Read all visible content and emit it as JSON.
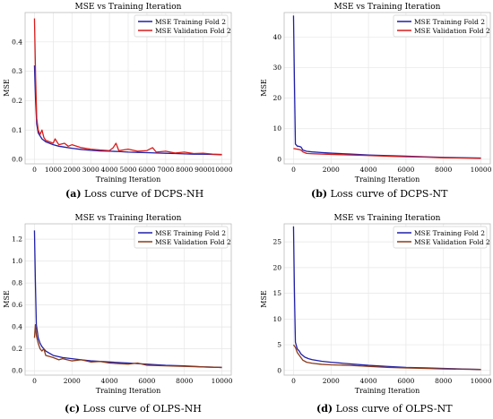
{
  "chart_data": [
    {
      "type": "line",
      "title": "MSE vs Training Iteration",
      "xlabel": "Training Iteration",
      "ylabel": "MSE",
      "xlim": [
        -500,
        10500
      ],
      "ylim": [
        -0.015,
        0.5
      ],
      "xticks": [
        0,
        1000,
        2000,
        3000,
        4000,
        5000,
        6000,
        7000,
        8000,
        9000,
        10000
      ],
      "yticks": [
        0.0,
        0.1,
        0.2,
        0.3,
        0.4
      ],
      "ytick_labels": [
        "0.0",
        "0.1",
        "0.2",
        "0.3",
        "0.4"
      ],
      "grid": true,
      "legend_position": "top-right",
      "caption_label": "(a)",
      "caption_text": "Loss curve of DCPS-NH",
      "series": [
        {
          "name": "MSE Training Fold 2",
          "color": "#1f1fa8",
          "x": [
            0,
            60,
            120,
            200,
            300,
            400,
            600,
            800,
            1000,
            1300,
            1600,
            2000,
            2500,
            3000,
            3500,
            4000,
            4500,
            5000,
            5500,
            6000,
            6500,
            7000,
            7500,
            8000,
            8500,
            9000,
            9500,
            10000
          ],
          "y": [
            0.32,
            0.2,
            0.12,
            0.09,
            0.08,
            0.07,
            0.06,
            0.055,
            0.05,
            0.045,
            0.042,
            0.038,
            0.034,
            0.031,
            0.029,
            0.028,
            0.027,
            0.025,
            0.024,
            0.023,
            0.022,
            0.021,
            0.02,
            0.019,
            0.018,
            0.018,
            0.017,
            0.016
          ]
        },
        {
          "name": "MSE Validation Fold 2",
          "color": "#d81b1b",
          "x": [
            0,
            60,
            120,
            200,
            300,
            400,
            500,
            600,
            800,
            1000,
            1100,
            1300,
            1600,
            1800,
            2000,
            2500,
            3000,
            3500,
            4000,
            4200,
            4350,
            4500,
            5000,
            5500,
            6000,
            6300,
            6500,
            7000,
            7500,
            8000,
            8500,
            9000,
            9500,
            10000
          ],
          "y": [
            0.48,
            0.28,
            0.14,
            0.1,
            0.085,
            0.1,
            0.075,
            0.065,
            0.06,
            0.055,
            0.07,
            0.05,
            0.055,
            0.045,
            0.05,
            0.04,
            0.035,
            0.032,
            0.03,
            0.04,
            0.055,
            0.03,
            0.035,
            0.028,
            0.03,
            0.04,
            0.025,
            0.028,
            0.022,
            0.025,
            0.02,
            0.021,
            0.018,
            0.017
          ]
        }
      ]
    },
    {
      "type": "line",
      "title": "MSE vs Training Iteration",
      "xlabel": "Training Iteration",
      "ylabel": "MSE",
      "xlim": [
        -500,
        10500
      ],
      "ylim": [
        -1.5,
        48
      ],
      "xticks": [
        0,
        2000,
        4000,
        6000,
        8000,
        10000
      ],
      "yticks": [
        0,
        10,
        20,
        30,
        40
      ],
      "ytick_labels": [
        "0",
        "10",
        "20",
        "30",
        "40"
      ],
      "grid": true,
      "legend_position": "top-right",
      "caption_label": "(b)",
      "caption_text": "Loss curve of DCPS-NT",
      "series": [
        {
          "name": "MSE Training Fold 2",
          "color": "#1f1fa8",
          "x": [
            0,
            50,
            100,
            200,
            300,
            400,
            500,
            700,
            1000,
            1500,
            2000,
            3000,
            4000,
            5000,
            6000,
            7000,
            8000,
            9000,
            10000
          ],
          "y": [
            47,
            25,
            5,
            4.3,
            4.2,
            4.0,
            3.0,
            2.6,
            2.4,
            2.2,
            2.0,
            1.7,
            1.4,
            1.2,
            1.0,
            0.8,
            0.6,
            0.5,
            0.4
          ]
        },
        {
          "name": "MSE Validation Fold 2",
          "color": "#d81b1b",
          "x": [
            0,
            100,
            200,
            300,
            400,
            500,
            700,
            1000,
            1500,
            2000,
            3000,
            4000,
            5000,
            6000,
            7000,
            8000,
            9000,
            10000
          ],
          "y": [
            3.5,
            3.4,
            3.3,
            3.2,
            3.0,
            2.4,
            1.9,
            1.8,
            1.7,
            1.6,
            1.4,
            1.2,
            1.0,
            0.8,
            0.7,
            0.5,
            0.4,
            0.3
          ]
        }
      ]
    },
    {
      "type": "line",
      "title": "MSE vs Training Iteration",
      "xlabel": "Training Iteration",
      "ylabel": "MSE",
      "xlim": [
        -500,
        10500
      ],
      "ylim": [
        -0.04,
        1.34
      ],
      "xticks": [
        0,
        2000,
        4000,
        6000,
        8000,
        10000
      ],
      "yticks": [
        0.0,
        0.2,
        0.4,
        0.6,
        0.8,
        1.0,
        1.2
      ],
      "ytick_labels": [
        "0.0",
        "0.2",
        "0.4",
        "0.6",
        "0.8",
        "1.0",
        "1.2"
      ],
      "grid": true,
      "legend_position": "top-right",
      "caption_label": "(c)",
      "caption_text": "Loss curve of OLPS-NH",
      "series": [
        {
          "name": "MSE Training Fold 2",
          "color": "#1f1fa8",
          "x": [
            0,
            50,
            100,
            200,
            300,
            400,
            600,
            800,
            1000,
            1500,
            2000,
            2500,
            3000,
            3500,
            4000,
            5000,
            6000,
            7000,
            8000,
            9000,
            10000
          ],
          "y": [
            1.28,
            0.8,
            0.42,
            0.3,
            0.25,
            0.22,
            0.18,
            0.16,
            0.14,
            0.12,
            0.11,
            0.1,
            0.09,
            0.085,
            0.08,
            0.07,
            0.06,
            0.05,
            0.045,
            0.035,
            0.03
          ]
        },
        {
          "name": "MSE Validation Fold 2",
          "color": "#8b3a1a",
          "x": [
            0,
            50,
            100,
            200,
            300,
            400,
            500,
            600,
            800,
            1000,
            1300,
            1500,
            2000,
            2500,
            3000,
            3500,
            4000,
            5000,
            5500,
            6000,
            7000,
            8000,
            9000,
            10000
          ],
          "y": [
            0.3,
            0.42,
            0.32,
            0.25,
            0.2,
            0.18,
            0.2,
            0.14,
            0.13,
            0.12,
            0.1,
            0.11,
            0.09,
            0.1,
            0.08,
            0.085,
            0.07,
            0.06,
            0.07,
            0.05,
            0.045,
            0.04,
            0.035,
            0.03
          ]
        }
      ]
    },
    {
      "type": "line",
      "title": "MSE vs Training Iteration",
      "xlabel": "Training Iteration",
      "ylabel": "MSE",
      "xlim": [
        -500,
        10500
      ],
      "ylim": [
        -0.9,
        28.5
      ],
      "xticks": [
        0,
        2000,
        4000,
        6000,
        8000,
        10000
      ],
      "yticks": [
        0,
        5,
        10,
        15,
        20,
        25
      ],
      "ytick_labels": [
        "0",
        "5",
        "10",
        "15",
        "20",
        "25"
      ],
      "grid": true,
      "legend_position": "top-right",
      "caption_label": "(d)",
      "caption_text": "Loss curve of OLPS-NT",
      "series": [
        {
          "name": "MSE Training Fold 2",
          "color": "#1f1fa8",
          "x": [
            0,
            50,
            100,
            200,
            300,
            400,
            600,
            800,
            1000,
            1500,
            2000,
            3000,
            4000,
            5000,
            6000,
            7000,
            8000,
            9000,
            10000
          ],
          "y": [
            28,
            15,
            5.5,
            4.2,
            3.8,
            3.2,
            2.6,
            2.3,
            2.1,
            1.8,
            1.6,
            1.3,
            1.0,
            0.8,
            0.6,
            0.5,
            0.4,
            0.3,
            0.2
          ]
        },
        {
          "name": "MSE Validation Fold 2",
          "color": "#8b3a1a",
          "x": [
            0,
            100,
            200,
            300,
            400,
            500,
            700,
            1000,
            1500,
            2000,
            3000,
            4000,
            5000,
            6000,
            7000,
            8000,
            9000,
            10000
          ],
          "y": [
            5.0,
            4.5,
            3.5,
            3.0,
            2.5,
            2.0,
            1.6,
            1.4,
            1.2,
            1.1,
            1.0,
            0.8,
            0.6,
            0.5,
            0.4,
            0.3,
            0.25,
            0.2
          ]
        }
      ]
    }
  ]
}
